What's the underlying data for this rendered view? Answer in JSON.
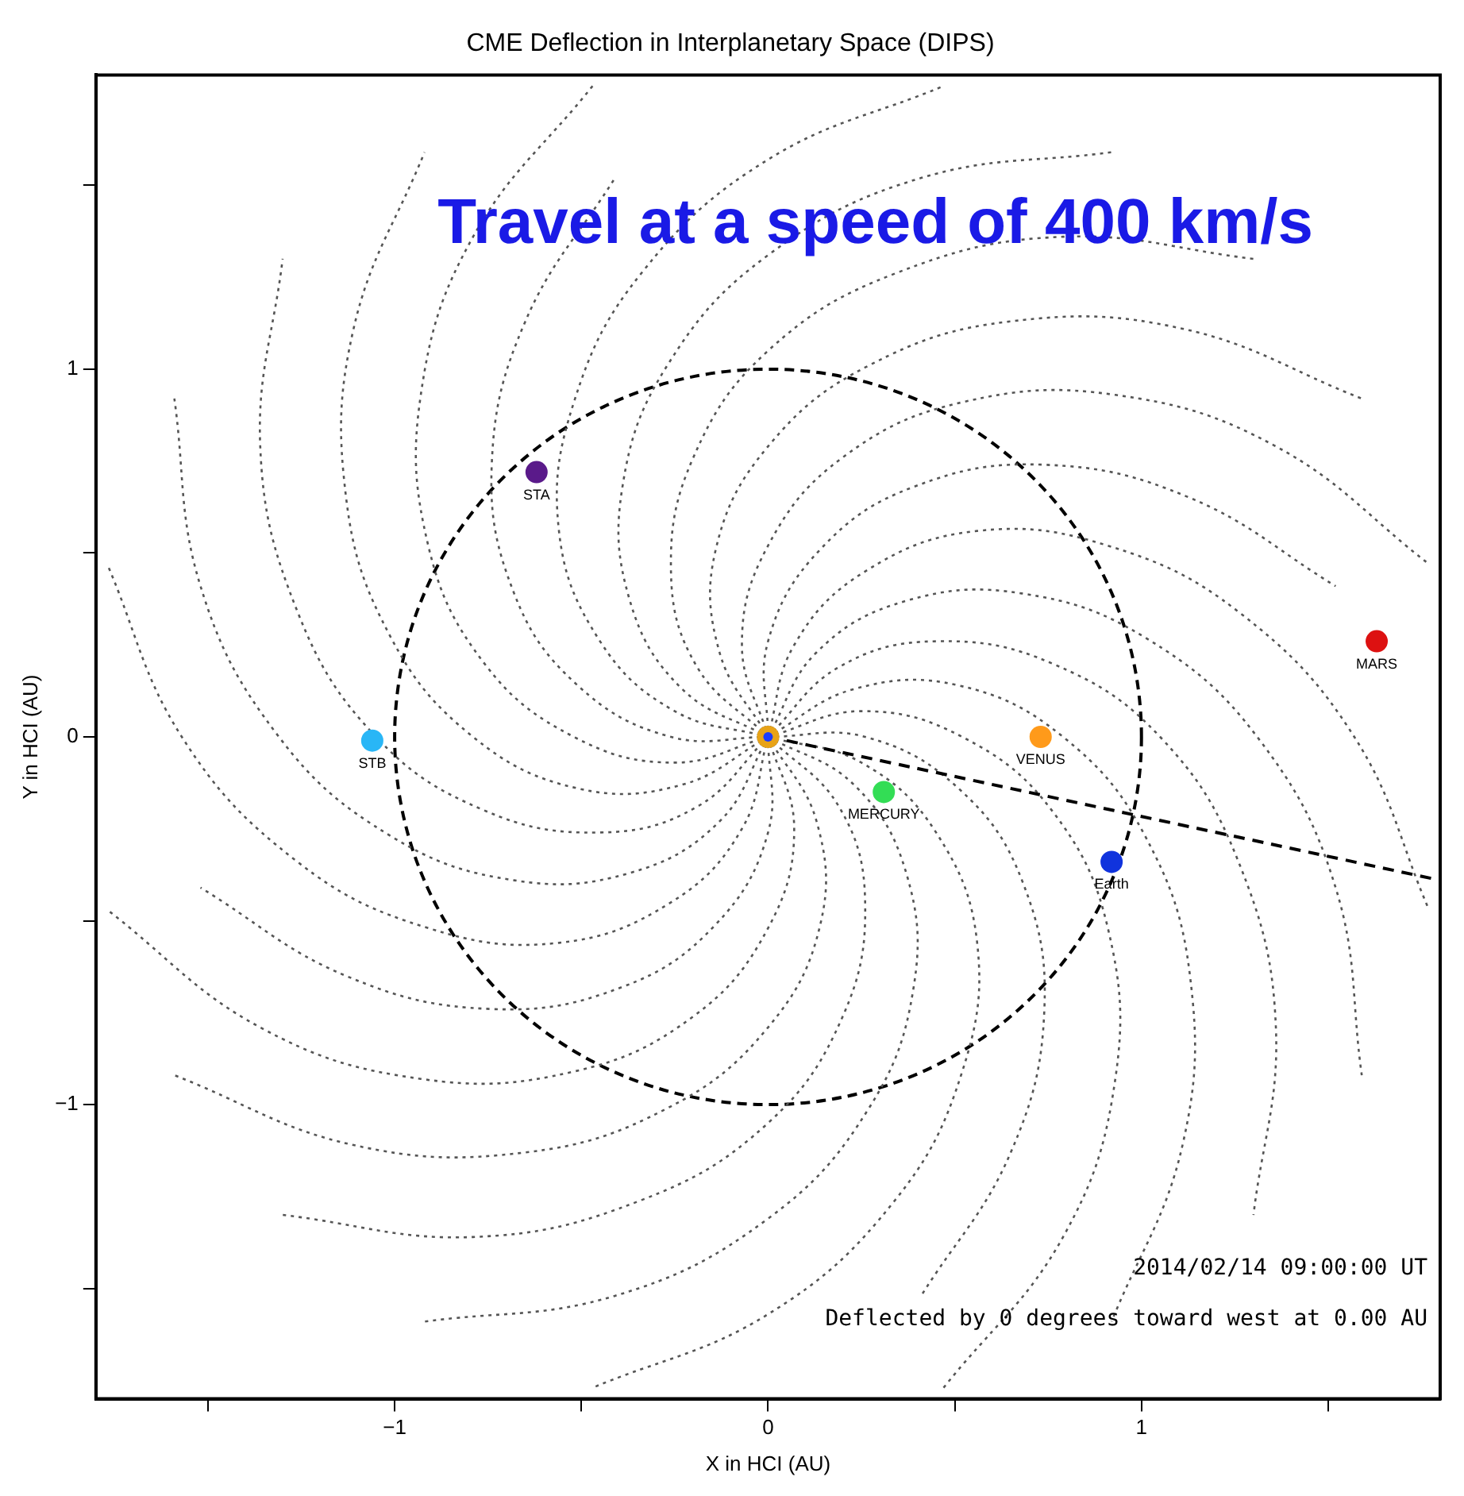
{
  "chart_data": {
    "type": "scatter",
    "title": "CME Deflection in Interplanetary Space (DIPS)",
    "xlabel": "X in HCI (AU)",
    "ylabel": "Y in HCI (AU)",
    "xlim": [
      -1.8,
      1.8
    ],
    "ylim": [
      -1.8,
      1.8
    ],
    "xticks": [
      {
        "value": -1.5,
        "label": null
      },
      {
        "value": -1,
        "label": "−1"
      },
      {
        "value": -0.5,
        "label": null
      },
      0,
      {
        "value": 0.5,
        "label": null
      },
      1,
      {
        "value": 1.5,
        "label": null
      }
    ],
    "yticks": [
      {
        "value": -1.5,
        "label": null
      },
      {
        "value": -1,
        "label": "−1"
      },
      {
        "value": -0.5,
        "label": null
      },
      0,
      {
        "value": 0.5,
        "label": null
      },
      1,
      {
        "value": 1.5,
        "label": null
      }
    ],
    "legend": false,
    "marker": "none",
    "annotations": [
      "Travel at a speed of 400 km/s",
      "2014/02/14 09:00:00 UT",
      "Deflected by 0 degrees toward west at 0.00 AU"
    ],
    "series": [
      {
        "type": "line",
        "color": "#555555",
        "line_style": "dotted",
        "x": [
          0,
          0.25,
          0.45,
          0.56,
          0.52,
          0.34,
          0,
          -0.47
        ],
        "values": [
          0,
          -0.07,
          -0.26,
          -0.56,
          -0.91,
          -1.26,
          -1.57,
          -1.77
        ]
      },
      {
        "type": "line",
        "color": "#555555",
        "line_style": "dotted",
        "x": [
          0,
          0.26,
          0.51,
          0.68,
          0.74,
          0.65,
          0.41
        ],
        "values": [
          0,
          0,
          -0.14,
          -0.39,
          -0.74,
          -1.13,
          -1.52
        ]
      },
      {
        "type": "line",
        "color": "#555555",
        "line_style": "dotted",
        "x": [
          0,
          0.25,
          0.52,
          0.76,
          0.91,
          0.93,
          0.79,
          0.47
        ],
        "values": [
          0,
          0.07,
          0,
          -0.2,
          -0.52,
          -0.93,
          -1.36,
          -1.77
        ]
      },
      {
        "type": "line",
        "color": "#555555",
        "line_style": "dotted",
        "x": [
          0,
          0.23,
          0.51,
          0.79,
          1.01,
          1.13,
          1.11,
          0.92
        ],
        "values": [
          0,
          0.13,
          0.14,
          0,
          -0.27,
          -0.65,
          -1.11,
          -1.59
        ]
      },
      {
        "type": "line",
        "color": "#555555",
        "line_style": "dotted",
        "x": [
          0,
          0.19,
          0.45,
          0.76,
          1.05,
          1.26,
          1.36,
          1.3
        ],
        "values": [
          0,
          0.19,
          0.26,
          0.2,
          0,
          -0.34,
          -0.79,
          -1.3
        ]
      },
      {
        "type": "line",
        "color": "#555555",
        "line_style": "dotted",
        "x": [
          0,
          0.13,
          0.37,
          0.68,
          1.01,
          1.31,
          1.52,
          1.59
        ],
        "values": [
          0,
          0.23,
          0.37,
          0.39,
          0.27,
          0,
          -0.41,
          -0.92
        ]
      },
      {
        "type": "line",
        "color": "#555555",
        "line_style": "dotted",
        "x": [
          0,
          0.07,
          0.26,
          0.56,
          0.91,
          1.26,
          1.57,
          1.77
        ],
        "values": [
          0,
          0.25,
          0.45,
          0.56,
          0.52,
          0.34,
          0,
          -0.47
        ]
      },
      {
        "type": "line",
        "color": "#555555",
        "line_style": "dotted",
        "x": [
          0,
          0,
          0.14,
          0.39,
          0.74,
          1.13,
          1.52
        ],
        "values": [
          0,
          0.26,
          0.51,
          0.68,
          0.74,
          0.65,
          0.41
        ]
      },
      {
        "type": "line",
        "color": "#555555",
        "line_style": "dotted",
        "x": [
          0,
          -0.07,
          0,
          0.2,
          0.52,
          0.93,
          1.36,
          1.77
        ],
        "values": [
          0,
          0.25,
          0.52,
          0.76,
          0.91,
          0.93,
          0.79,
          0.47
        ]
      },
      {
        "type": "line",
        "color": "#555555",
        "line_style": "dotted",
        "x": [
          0,
          -0.13,
          -0.14,
          0,
          0.27,
          0.65,
          1.11,
          1.59
        ],
        "values": [
          0,
          0.23,
          0.51,
          0.79,
          1.01,
          1.13,
          1.11,
          0.92
        ]
      },
      {
        "type": "line",
        "color": "#555555",
        "line_style": "dotted",
        "x": [
          0,
          -0.19,
          -0.26,
          -0.2,
          0,
          0.34,
          0.79,
          1.3
        ],
        "values": [
          0,
          0.19,
          0.45,
          0.76,
          1.05,
          1.26,
          1.36,
          1.3
        ]
      },
      {
        "type": "line",
        "color": "#555555",
        "line_style": "dotted",
        "x": [
          0,
          -0.23,
          -0.37,
          -0.39,
          -0.27,
          0,
          0.41,
          0.92
        ],
        "values": [
          0,
          0.13,
          0.37,
          0.68,
          1.01,
          1.31,
          1.52,
          1.59
        ]
      },
      {
        "type": "line",
        "color": "#555555",
        "line_style": "dotted",
        "x": [
          0,
          -0.25,
          -0.45,
          -0.56,
          -0.52,
          -0.34,
          0,
          0.47
        ],
        "values": [
          0,
          0.07,
          0.26,
          0.56,
          0.91,
          1.26,
          1.57,
          1.77
        ]
      },
      {
        "type": "line",
        "color": "#555555",
        "line_style": "dotted",
        "x": [
          0,
          -0.26,
          -0.51,
          -0.68,
          -0.74,
          -0.65,
          -0.41
        ],
        "values": [
          0,
          0,
          0.14,
          0.39,
          0.74,
          1.13,
          1.52
        ]
      },
      {
        "type": "line",
        "color": "#555555",
        "line_style": "dotted",
        "x": [
          0,
          -0.25,
          -0.52,
          -0.76,
          -0.91,
          -0.93,
          -0.79,
          -0.47
        ],
        "values": [
          0,
          -0.07,
          0,
          0.2,
          0.52,
          0.93,
          1.36,
          1.77
        ]
      },
      {
        "type": "line",
        "color": "#555555",
        "line_style": "dotted",
        "x": [
          0,
          -0.23,
          -0.51,
          -0.79,
          -1.01,
          -1.13,
          -1.11,
          -0.92
        ],
        "values": [
          0,
          -0.13,
          -0.14,
          0,
          0.27,
          0.65,
          1.11,
          1.59
        ]
      },
      {
        "type": "line",
        "color": "#555555",
        "line_style": "dotted",
        "x": [
          0,
          -0.19,
          -0.45,
          -0.76,
          -1.05,
          -1.26,
          -1.36,
          -1.3
        ],
        "values": [
          0,
          -0.19,
          -0.26,
          -0.2,
          0,
          0.34,
          0.79,
          1.3
        ]
      },
      {
        "type": "line",
        "color": "#555555",
        "line_style": "dotted",
        "x": [
          0,
          -0.13,
          -0.37,
          -0.68,
          -1.01,
          -1.31,
          -1.52,
          -1.59
        ],
        "values": [
          0,
          -0.23,
          -0.37,
          -0.39,
          -0.27,
          0,
          0.41,
          0.92
        ]
      },
      {
        "type": "line",
        "color": "#555555",
        "line_style": "dotted",
        "x": [
          0,
          -0.07,
          -0.26,
          -0.56,
          -0.91,
          -1.26,
          -1.57,
          -1.77
        ],
        "values": [
          0,
          -0.25,
          -0.45,
          -0.56,
          -0.52,
          -0.34,
          0,
          0.47
        ]
      },
      {
        "type": "line",
        "color": "#555555",
        "line_style": "dotted",
        "x": [
          0,
          0,
          -0.14,
          -0.39,
          -0.74,
          -1.13,
          -1.52
        ],
        "values": [
          0,
          -0.26,
          -0.51,
          -0.68,
          -0.74,
          -0.65,
          -0.41
        ]
      },
      {
        "type": "line",
        "color": "#555555",
        "line_style": "dotted",
        "x": [
          0,
          0.07,
          0,
          -0.2,
          -0.52,
          -0.93,
          -1.36,
          -1.77
        ],
        "values": [
          0,
          -0.25,
          -0.52,
          -0.76,
          -0.91,
          -0.93,
          -0.79,
          -0.47
        ]
      },
      {
        "type": "line",
        "color": "#555555",
        "line_style": "dotted",
        "x": [
          0,
          0.13,
          0.14,
          0,
          -0.27,
          -0.65,
          -1.11,
          -1.59
        ],
        "values": [
          0,
          -0.23,
          -0.51,
          -0.79,
          -1.01,
          -1.13,
          -1.11,
          -0.92
        ]
      },
      {
        "type": "line",
        "color": "#555555",
        "line_style": "dotted",
        "x": [
          0,
          0.19,
          0.26,
          0.2,
          0,
          -0.34,
          -0.79,
          -1.3
        ],
        "values": [
          0,
          -0.19,
          -0.45,
          -0.76,
          -1.05,
          -1.26,
          -1.36,
          -1.3
        ]
      },
      {
        "type": "line",
        "color": "#555555",
        "line_style": "dotted",
        "x": [
          0,
          0.23,
          0.37,
          0.39,
          0.27,
          0,
          -0.41,
          -0.92
        ],
        "values": [
          0,
          -0.13,
          -0.37,
          -0.68,
          -1.01,
          -1.31,
          -1.52,
          -1.59
        ]
      },
      {
        "type": "line",
        "color": "#000000",
        "line_style": "dashed",
        "x": [
          0.05,
          1.8
        ],
        "values": [
          -0.01,
          -0.39
        ]
      },
      {
        "name": "STA",
        "marker": "circle",
        "color": "#5a1a8a",
        "x": [
          -0.62
        ],
        "values": [
          0.72
        ]
      },
      {
        "name": "STB",
        "marker": "circle",
        "color": "#29b6f6",
        "x": [
          -1.06
        ],
        "values": [
          -0.01
        ]
      },
      {
        "name": "MERCURY",
        "marker": "circle",
        "color": "#33dd55",
        "x": [
          0.31
        ],
        "values": [
          -0.15
        ]
      },
      {
        "name": "VENUS",
        "marker": "circle",
        "color": "#ff9a1a",
        "x": [
          0.73
        ],
        "values": [
          0.0
        ]
      },
      {
        "name": "Earth",
        "marker": "circle",
        "color": "#1033dd",
        "x": [
          0.92
        ],
        "values": [
          -0.34
        ]
      },
      {
        "name": "MARS",
        "marker": "circle",
        "color": "#dd1111",
        "x": [
          1.63
        ],
        "values": [
          0.26
        ]
      },
      {
        "marker": "circle",
        "color": "#e8a317",
        "x": [
          0
        ],
        "values": [
          0
        ]
      },
      {
        "marker": "circle",
        "color": "#1a3cff",
        "x": [
          0
        ],
        "values": [
          0
        ]
      }
    ]
  }
}
